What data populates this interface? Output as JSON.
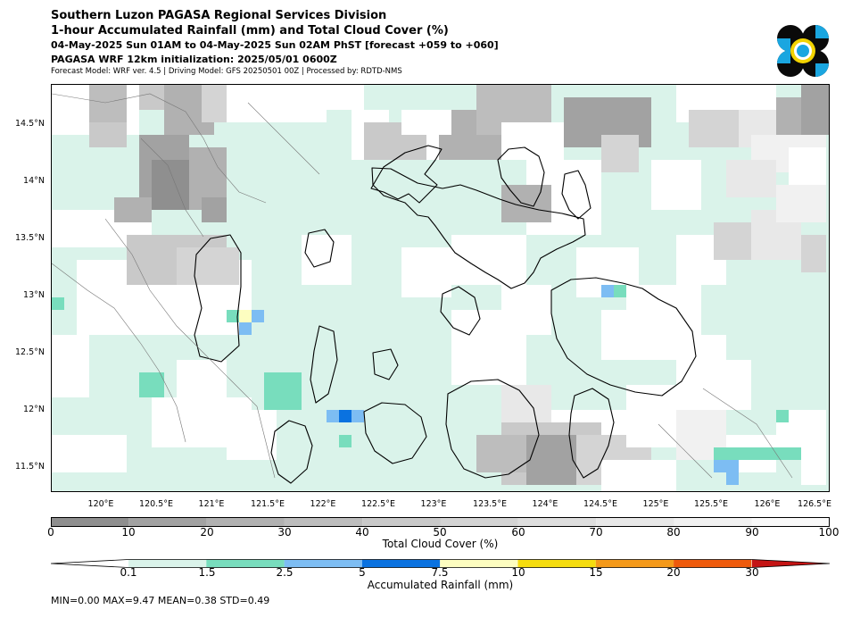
{
  "header": {
    "line1": "Southern Luzon PAGASA Regional Services Division",
    "line2": "1-hour Accumulated Rainfall (mm) and Total Cloud Cover (%)",
    "line3": "04-May-2025 Sun 01AM to 04-May-2025 Sun 02AM PhST [forecast +059 to +060]",
    "line4": "PAGASA WRF 12km initialization: 2025/05/01 0600Z",
    "line5": "Forecast Model: WRF ver. 4.5 | Driving Model: GFS 20250501 00Z | Processed by: RDTD-NMS"
  },
  "logo": {
    "icon": "pagasa-logo-icon",
    "colors": [
      "#0a0a0a",
      "#1aa6e0",
      "#f2d300"
    ]
  },
  "map": {
    "lat_labels": [
      "14.5°N",
      "14°N",
      "13.5°N",
      "13°N",
      "12.5°N",
      "12°N",
      "11.5°N"
    ],
    "lon_labels": [
      "120°E",
      "120.5°E",
      "121°E",
      "121.5°E",
      "122°E",
      "122.5°E",
      "123°E",
      "123.5°E",
      "124°E",
      "124.5°E",
      "125°E",
      "125.5°E",
      "126°E",
      "126.5°E"
    ],
    "base_color": "#daf3ea"
  },
  "cloud_bar": {
    "label": "Total Cloud Cover (%)",
    "ticks": [
      "0",
      "10",
      "20",
      "30",
      "40",
      "50",
      "60",
      "70",
      "80",
      "90",
      "100"
    ],
    "colors": [
      "#8f8f8f",
      "#a2a2a2",
      "#b1b1b1",
      "#bdbdbd",
      "#c9c9c9",
      "#d4d4d4",
      "#dedede",
      "#e8e8e8",
      "#f1f1f1",
      "#f9f9f9"
    ]
  },
  "rain_bar": {
    "label": "Accumulated Rainfall (mm)",
    "ticks": [
      "0.1",
      "1.5",
      "2.5",
      "5",
      "7.5",
      "10",
      "15",
      "20",
      "30"
    ],
    "colors": [
      "#daf3ea",
      "#78ddbd",
      "#7dbdf3",
      "#0a72e0",
      "#fdfdc0",
      "#f5dc0f",
      "#f4991a",
      "#ee5a0c",
      "#c41414"
    ]
  },
  "stats": "MIN=0.00   MAX=9.47   MEAN=0.38   STD=0.49"
}
